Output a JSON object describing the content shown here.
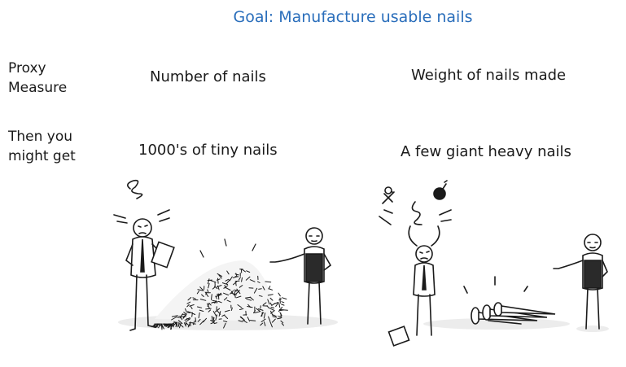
{
  "title": "Goal: Manufacture usable nails",
  "rows": [
    {
      "label": "Proxy Measure",
      "left": "Number of nails",
      "right": "Weight of nails made"
    },
    {
      "label": "Then you might get",
      "left": "1000's of tiny nails",
      "right": "A few giant heavy nails"
    }
  ],
  "colors": {
    "title": "#2a6ebb",
    "ink": "#1a1a1a",
    "shadow": "#e8e8e8"
  }
}
